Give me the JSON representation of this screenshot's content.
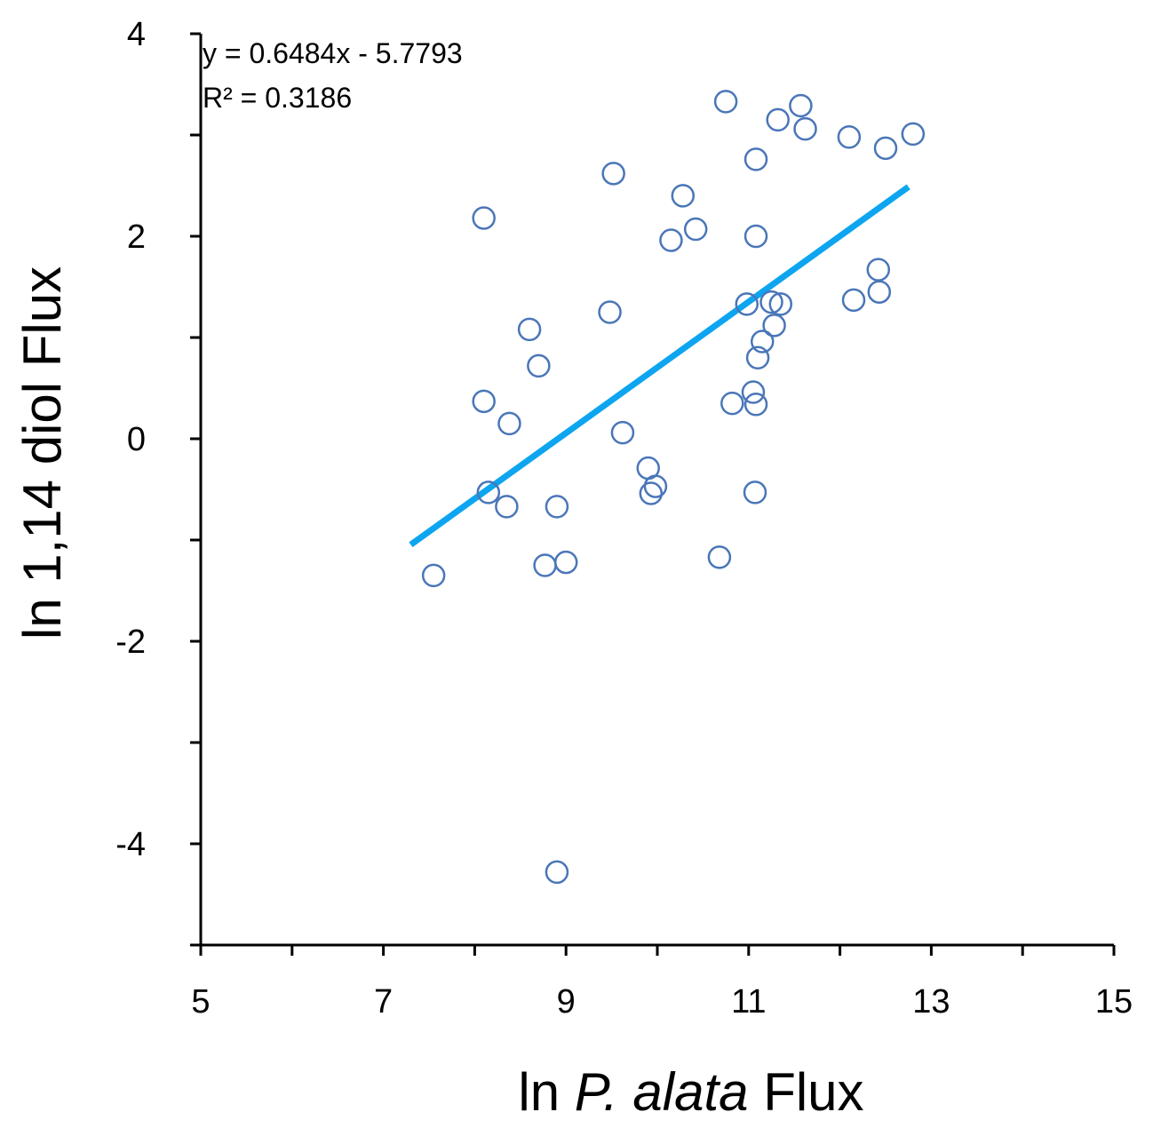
{
  "chart_data": {
    "type": "scatter",
    "xlabel_prefix": "ln ",
    "xlabel_italic": "P. alata",
    "xlabel_suffix": " Flux",
    "ylabel": "ln 1,14 diol Flux",
    "xlim": [
      5,
      15
    ],
    "ylim": [
      -5,
      4
    ],
    "x_ticks": [
      5,
      7,
      9,
      11,
      13,
      15
    ],
    "x_minor_ticks": [
      6,
      8,
      10,
      12,
      14
    ],
    "y_ticks": [
      4,
      2,
      0,
      -2,
      -4
    ],
    "y_tick_labels": [
      "4",
      "2",
      "0",
      "-2",
      "-4"
    ],
    "y_minor_ticks": [
      3,
      1,
      -1,
      -3,
      -5
    ],
    "grid": false,
    "equation": "y = 0.6484x - 5.7793",
    "r_squared": "R² = 0.3186",
    "trendline": {
      "slope": 0.6484,
      "intercept": -5.7793,
      "x_start": 7.3,
      "x_end": 12.75,
      "color": "#0ea5f0"
    },
    "marker_color": "#4a76b8",
    "points": [
      {
        "x": 7.55,
        "y": -1.35
      },
      {
        "x": 8.1,
        "y": 2.18
      },
      {
        "x": 8.1,
        "y": 0.37
      },
      {
        "x": 8.15,
        "y": -0.53
      },
      {
        "x": 8.35,
        "y": -0.67
      },
      {
        "x": 8.38,
        "y": 0.15
      },
      {
        "x": 8.6,
        "y": 1.08
      },
      {
        "x": 8.7,
        "y": 0.72
      },
      {
        "x": 8.77,
        "y": -1.25
      },
      {
        "x": 8.9,
        "y": -0.67
      },
      {
        "x": 8.9,
        "y": -4.28
      },
      {
        "x": 9.0,
        "y": -1.22
      },
      {
        "x": 9.48,
        "y": 1.25
      },
      {
        "x": 9.52,
        "y": 2.62
      },
      {
        "x": 9.62,
        "y": 0.06
      },
      {
        "x": 9.9,
        "y": -0.29
      },
      {
        "x": 9.93,
        "y": -0.54
      },
      {
        "x": 9.98,
        "y": -0.47
      },
      {
        "x": 10.15,
        "y": 1.96
      },
      {
        "x": 10.28,
        "y": 2.4
      },
      {
        "x": 10.42,
        "y": 2.07
      },
      {
        "x": 10.68,
        "y": -1.17
      },
      {
        "x": 10.75,
        "y": 3.33
      },
      {
        "x": 10.82,
        "y": 0.35
      },
      {
        "x": 10.98,
        "y": 1.33
      },
      {
        "x": 11.05,
        "y": 0.46
      },
      {
        "x": 11.07,
        "y": -0.53
      },
      {
        "x": 11.08,
        "y": 2.76
      },
      {
        "x": 11.08,
        "y": 2.0
      },
      {
        "x": 11.08,
        "y": 0.34
      },
      {
        "x": 11.1,
        "y": 0.8
      },
      {
        "x": 11.15,
        "y": 0.96
      },
      {
        "x": 11.25,
        "y": 1.35
      },
      {
        "x": 11.28,
        "y": 1.12
      },
      {
        "x": 11.32,
        "y": 3.15
      },
      {
        "x": 11.35,
        "y": 1.33
      },
      {
        "x": 11.57,
        "y": 3.29
      },
      {
        "x": 11.62,
        "y": 3.06
      },
      {
        "x": 12.1,
        "y": 2.98
      },
      {
        "x": 12.15,
        "y": 1.37
      },
      {
        "x": 12.42,
        "y": 1.67
      },
      {
        "x": 12.43,
        "y": 1.45
      },
      {
        "x": 12.5,
        "y": 2.87
      },
      {
        "x": 12.8,
        "y": 3.01
      }
    ]
  }
}
